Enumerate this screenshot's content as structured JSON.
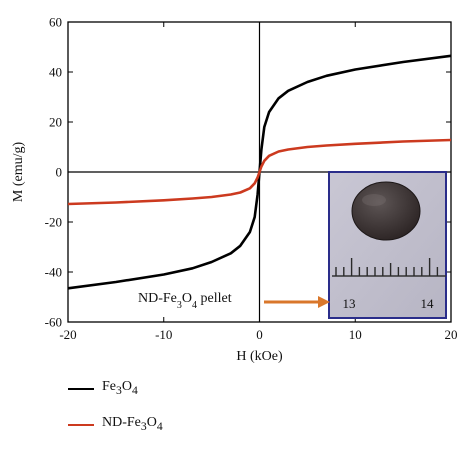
{
  "chart_data": {
    "type": "line",
    "xlabel": "H (kOe)",
    "ylabel": "M (emu/g)",
    "xlim": [
      -20,
      20
    ],
    "ylim": [
      -60,
      60
    ],
    "x_ticks": [
      "-20",
      "-10",
      "0",
      "10",
      "20"
    ],
    "y_ticks": [
      "60",
      "40",
      "20",
      "0",
      "-20",
      "-40",
      "-60"
    ],
    "grid": false,
    "legend_placement": "bottom-left, below plot",
    "series": [
      {
        "name": "Fe3O4",
        "name_html": "Fe<sub>3</sub>O<sub>4</sub>",
        "color": "#000000",
        "x": [
          -20,
          -15,
          -10,
          -7,
          -5,
          -3,
          -2,
          -1,
          -0.5,
          -0.2,
          0,
          0.2,
          0.5,
          1,
          2,
          3,
          5,
          7,
          10,
          15,
          20
        ],
        "y": [
          -46.5,
          -44,
          -41,
          -38.5,
          -36,
          -32.5,
          -29.5,
          -24,
          -18,
          -9,
          0,
          9,
          18,
          24,
          29.5,
          32.5,
          36,
          38.5,
          41,
          44,
          46.5
        ]
      },
      {
        "name": "ND-Fe3O4",
        "name_html": "ND-Fe<sub>3</sub>O<sub>4</sub>",
        "color": "#cc3a1f",
        "x": [
          -20,
          -15,
          -10,
          -7,
          -5,
          -3,
          -2,
          -1,
          -0.5,
          -0.2,
          0,
          0.2,
          0.5,
          1,
          2,
          3,
          5,
          7,
          10,
          15,
          20
        ],
        "y": [
          -12.8,
          -12.2,
          -11.3,
          -10.6,
          -10,
          -9,
          -8.2,
          -6.5,
          -4.5,
          -2.2,
          0,
          2.2,
          4.5,
          6.5,
          8.2,
          9,
          10,
          10.6,
          11.3,
          12.2,
          12.8
        ]
      }
    ]
  },
  "inset": {
    "annotation_html": "ND-Fe<sub>3</sub>O<sub>4</sub> pellet",
    "annotation_text": "ND-Fe3O4 pellet",
    "ruler_labels": [
      "13",
      "14"
    ],
    "arrow_color": "#d9772b",
    "frame_color": "#2a2d8a"
  }
}
